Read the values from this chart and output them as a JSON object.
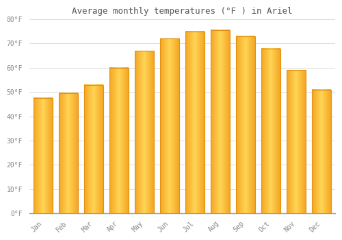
{
  "title": "Average monthly temperatures (°F ) in Ariel",
  "months": [
    "Jan",
    "Feb",
    "Mar",
    "Apr",
    "May",
    "Jun",
    "Jul",
    "Aug",
    "Sep",
    "Oct",
    "Nov",
    "Dec"
  ],
  "values": [
    47.5,
    49.5,
    53.0,
    60.0,
    67.0,
    72.0,
    75.0,
    75.5,
    73.0,
    68.0,
    59.0,
    51.0
  ],
  "bar_color_left": "#F5A623",
  "bar_color_mid": "#FFD455",
  "bar_color_right": "#F5A623",
  "bar_edge_color": "#E09010",
  "background_color": "#FFFFFF",
  "grid_color": "#DDDDDD",
  "text_color": "#888888",
  "title_color": "#555555",
  "ylim": [
    0,
    80
  ],
  "yticks": [
    0,
    10,
    20,
    30,
    40,
    50,
    60,
    70,
    80
  ],
  "ytick_labels": [
    "0°F",
    "10°F",
    "20°F",
    "30°F",
    "40°F",
    "50°F",
    "60°F",
    "70°F",
    "80°F"
  ],
  "bar_width": 0.75,
  "figsize": [
    5.0,
    3.5
  ],
  "dpi": 100
}
